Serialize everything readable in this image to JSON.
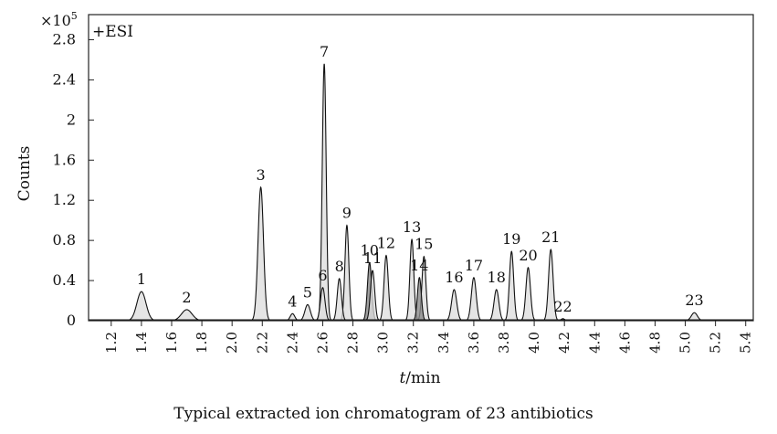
{
  "chart_data": {
    "type": "line",
    "title": "Typical extracted ion chromatogram of 23 antibiotics",
    "mode_label": "+ESI",
    "ylabel": "Counts",
    "y_multiplier": "×10",
    "y_multiplier_exp": "5",
    "xlabel_italic": "t",
    "xlabel_unit": "/min",
    "xlim": [
      1.05,
      5.45
    ],
    "ylim": [
      0,
      3.05
    ],
    "x_ticks": [
      "1.2",
      "1.4",
      "1.6",
      "1.8",
      "2.0",
      "2.2",
      "2.4",
      "2.6",
      "2.8",
      "3.0",
      "3.2",
      "3.4",
      "3.6",
      "3.8",
      "4.0",
      "4.2",
      "4.4",
      "4.6",
      "4.8",
      "5.0",
      "5.2",
      "5.4"
    ],
    "y_ticks": [
      "0",
      "0.4",
      "0.8",
      "1.2",
      "1.6",
      "2",
      "2.4",
      "2.8"
    ],
    "grid": false,
    "peaks": [
      {
        "label": "1",
        "rt": 1.4,
        "height": 0.29,
        "width": 0.03,
        "shade": "light"
      },
      {
        "label": "2",
        "rt": 1.7,
        "height": 0.11,
        "width": 0.035,
        "shade": "light"
      },
      {
        "label": "3",
        "rt": 2.19,
        "height": 1.33,
        "width": 0.018,
        "shade": "light"
      },
      {
        "label": "4",
        "rt": 2.4,
        "height": 0.07,
        "width": 0.015,
        "shade": "light"
      },
      {
        "label": "5",
        "rt": 2.5,
        "height": 0.16,
        "width": 0.018,
        "shade": "light"
      },
      {
        "label": "6",
        "rt": 2.6,
        "height": 0.33,
        "width": 0.015,
        "shade": "light"
      },
      {
        "label": "7",
        "rt": 2.61,
        "height": 2.56,
        "width": 0.013,
        "shade": "light"
      },
      {
        "label": "8",
        "rt": 2.71,
        "height": 0.42,
        "width": 0.014,
        "shade": "light"
      },
      {
        "label": "9",
        "rt": 2.76,
        "height": 0.95,
        "width": 0.013,
        "shade": "light"
      },
      {
        "label": "10",
        "rt": 2.91,
        "height": 0.58,
        "width": 0.014,
        "shade": "dark"
      },
      {
        "label": "11",
        "rt": 2.93,
        "height": 0.5,
        "width": 0.014,
        "shade": "light"
      },
      {
        "label": "12",
        "rt": 3.02,
        "height": 0.65,
        "width": 0.014,
        "shade": "light"
      },
      {
        "label": "13",
        "rt": 3.19,
        "height": 0.81,
        "width": 0.013,
        "shade": "light"
      },
      {
        "label": "14",
        "rt": 3.24,
        "height": 0.43,
        "width": 0.013,
        "shade": "dark"
      },
      {
        "label": "15",
        "rt": 3.27,
        "height": 0.64,
        "width": 0.013,
        "shade": "light"
      },
      {
        "label": "16",
        "rt": 3.47,
        "height": 0.31,
        "width": 0.017,
        "shade": "light"
      },
      {
        "label": "17",
        "rt": 3.6,
        "height": 0.43,
        "width": 0.016,
        "shade": "light"
      },
      {
        "label": "18",
        "rt": 3.75,
        "height": 0.31,
        "width": 0.016,
        "shade": "light"
      },
      {
        "label": "19",
        "rt": 3.85,
        "height": 0.69,
        "width": 0.014,
        "shade": "light"
      },
      {
        "label": "20",
        "rt": 3.96,
        "height": 0.53,
        "width": 0.015,
        "shade": "light"
      },
      {
        "label": "21",
        "rt": 4.11,
        "height": 0.71,
        "width": 0.015,
        "shade": "light"
      },
      {
        "label": "22",
        "rt": 4.19,
        "height": 0.02,
        "width": 0.012,
        "shade": "light"
      },
      {
        "label": "23",
        "rt": 5.06,
        "height": 0.08,
        "width": 0.02,
        "shade": "light"
      }
    ]
  }
}
